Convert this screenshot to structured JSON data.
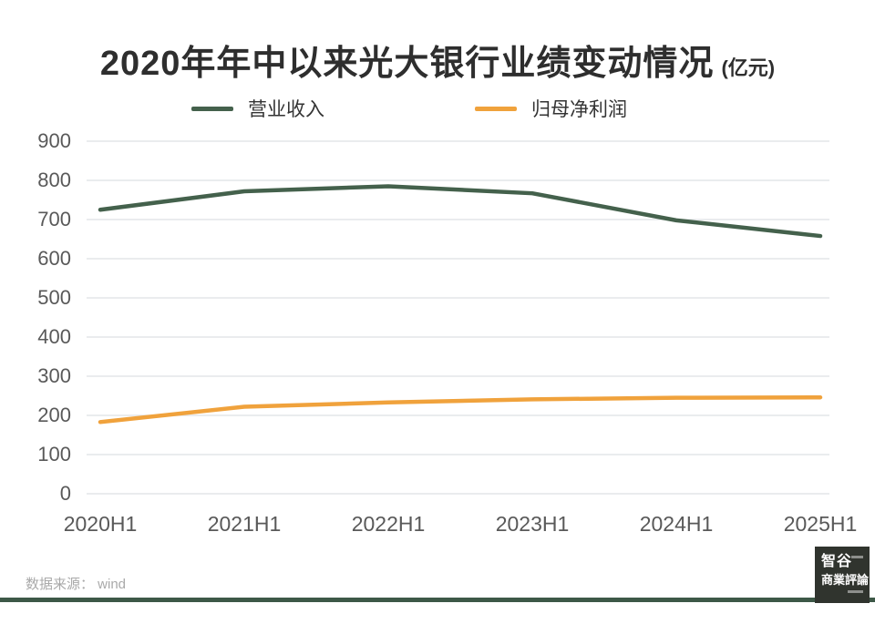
{
  "title": {
    "main": "2020年年中以来光大银行业绩变动情况",
    "unit": "(亿元)"
  },
  "chart_data": {
    "type": "line",
    "title": "2020年年中以来光大银行业绩变动情况",
    "unit_label": "亿元",
    "categories": [
      "2020H1",
      "2021H1",
      "2022H1",
      "2023H1",
      "2024H1",
      "2025H1"
    ],
    "series": [
      {
        "name": "营业收入",
        "color": "#44614c",
        "values": [
          725,
          772,
          785,
          767,
          698,
          658
        ]
      },
      {
        "name": "归母净利润",
        "color": "#f0a23c",
        "values": [
          183,
          222,
          233,
          241,
          245,
          246
        ]
      }
    ],
    "ylim": [
      0,
      900
    ],
    "ytick_step": 100,
    "grid": true,
    "legend_position": "top",
    "xlabel": "",
    "ylabel": ""
  },
  "colors": {
    "grid_line": "#e4e6e8",
    "axis_text": "#595959",
    "title_text": "#2e2e2e",
    "revenue_line": "#44614c",
    "profit_line": "#f0a23c",
    "bottom_rule": "#3d5847",
    "logo_background": "#30342e"
  },
  "footer": {
    "source": "数据来源： wind"
  },
  "logo": {
    "line1": "智谷",
    "line2": "商業評論"
  }
}
